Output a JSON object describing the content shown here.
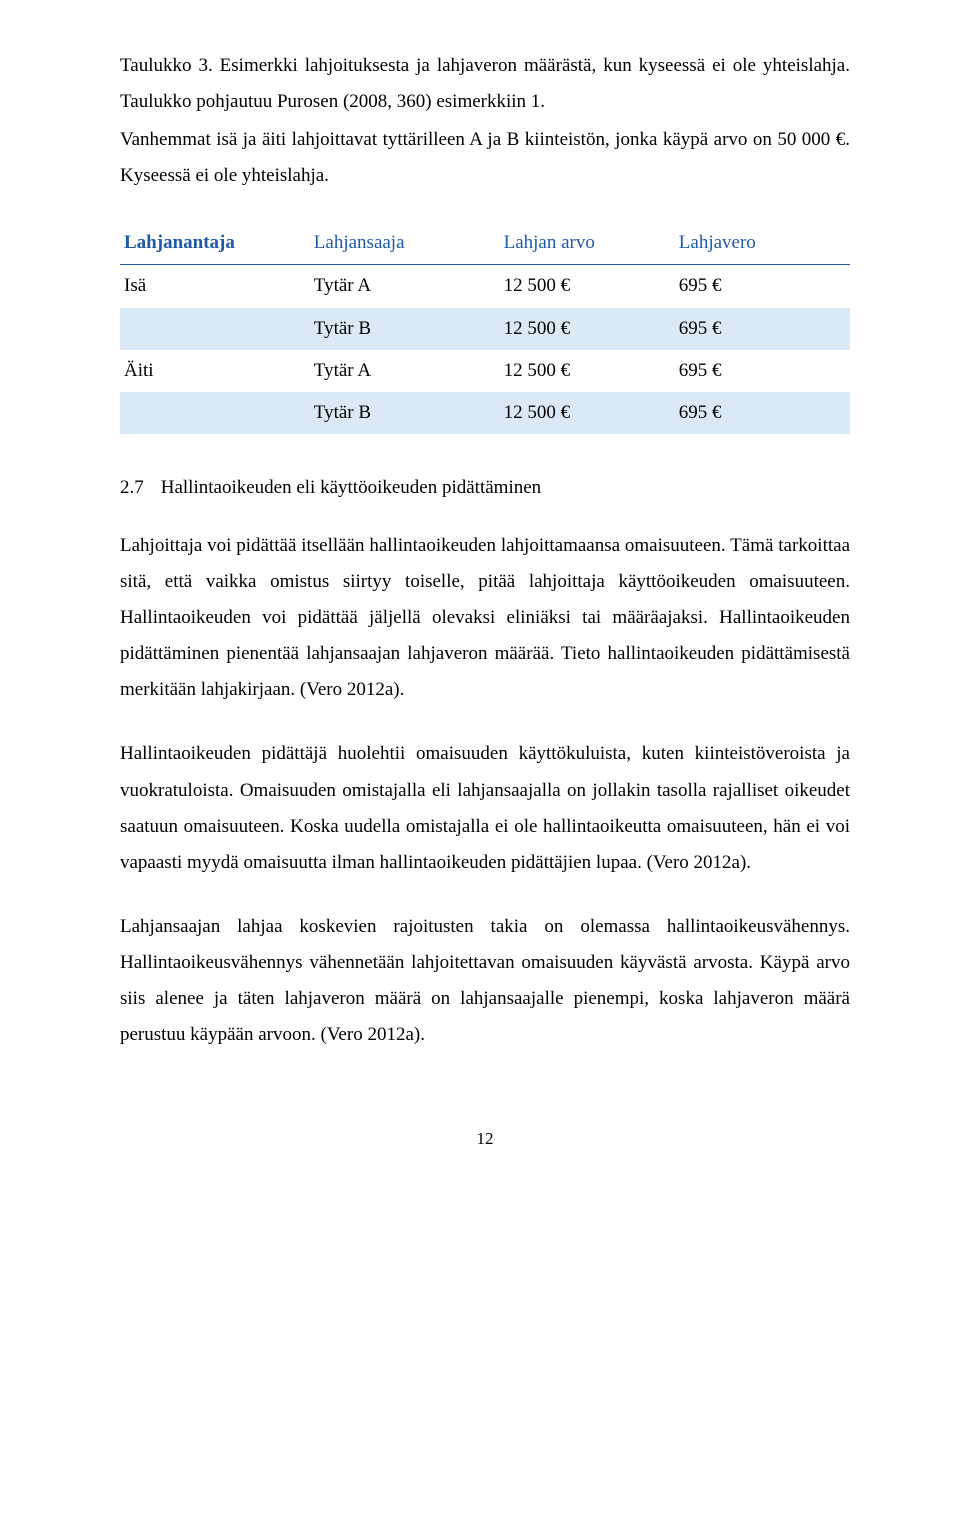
{
  "caption": {
    "text": "Taulukko 3. Esimerkki lahjoituksesta ja lahjaveron määrästä, kun kyseessä ei ole yhteislahja. Taulukko pohjautuu Purosen (2008, 360) esimerkkiin 1."
  },
  "lead_para": "Vanhemmat isä ja äiti lahjoittavat tyttärilleen A ja B kiinteistön, jonka käypä arvo on 50 000 €. Kyseessä ei ole yhteislahja.",
  "table": {
    "columns": [
      "Lahjanantaja",
      "Lahjansaaja",
      "Lahjan arvo",
      "Lahjavero"
    ],
    "rows": [
      {
        "cells": [
          "Isä",
          "Tytär A",
          "12 500 €",
          "695 €"
        ],
        "alt": false
      },
      {
        "cells": [
          "",
          "Tytär B",
          "12 500 €",
          "695 €"
        ],
        "alt": true
      },
      {
        "cells": [
          "Äiti",
          "Tytär A",
          "12 500 €",
          "695 €"
        ],
        "alt": false
      },
      {
        "cells": [
          "",
          "Tytär B",
          "12 500 €",
          "695 €"
        ],
        "alt": true
      }
    ],
    "header_color": "#1f5aa6",
    "alt_row_color": "#dbe9f6",
    "col_widths": [
      "26%",
      "26%",
      "24%",
      "24%"
    ]
  },
  "section": {
    "number": "2.7",
    "title": "Hallintaoikeuden eli käyttöoikeuden pidättäminen"
  },
  "paragraphs": [
    "Lahjoittaja voi pidättää itsellään hallintaoikeuden lahjoittamaansa omaisuuteen. Tämä tarkoittaa sitä, että vaikka omistus siirtyy toiselle, pitää lahjoittaja käyttöoikeuden omaisuuteen. Hallintaoikeuden voi pidättää jäljellä olevaksi eliniäksi tai määräajaksi. Hallintaoikeuden pidättäminen pienentää lahjansaajan lahjaveron määrää. Tieto hallintaoikeuden pidättämisestä merkitään lahjakirjaan. (Vero 2012a).",
    "Hallintaoikeuden pidättäjä huolehtii omaisuuden käyttökuluista, kuten kiinteistöveroista ja vuokratuloista. Omaisuuden omistajalla eli lahjansaajalla on jollakin tasolla rajalliset oikeudet saatuun omaisuuteen. Koska uudella omistajalla ei ole hallintaoikeutta omaisuuteen, hän ei voi vapaasti myydä omaisuutta ilman hallintaoikeuden pidättäjien lupaa. (Vero 2012a).",
    "Lahjansaajan lahjaa koskevien rajoitusten takia on olemassa hallintaoikeusvähennys. Hallintaoikeusvähennys vähennetään lahjoitettavan omaisuuden käyvästä arvosta. Käypä arvo siis alenee ja täten lahjaveron määrä on lahjansaajalle pienempi, koska lahjaveron määrä perustuu käypään arvoon. (Vero 2012a)."
  ],
  "page_number": "12"
}
